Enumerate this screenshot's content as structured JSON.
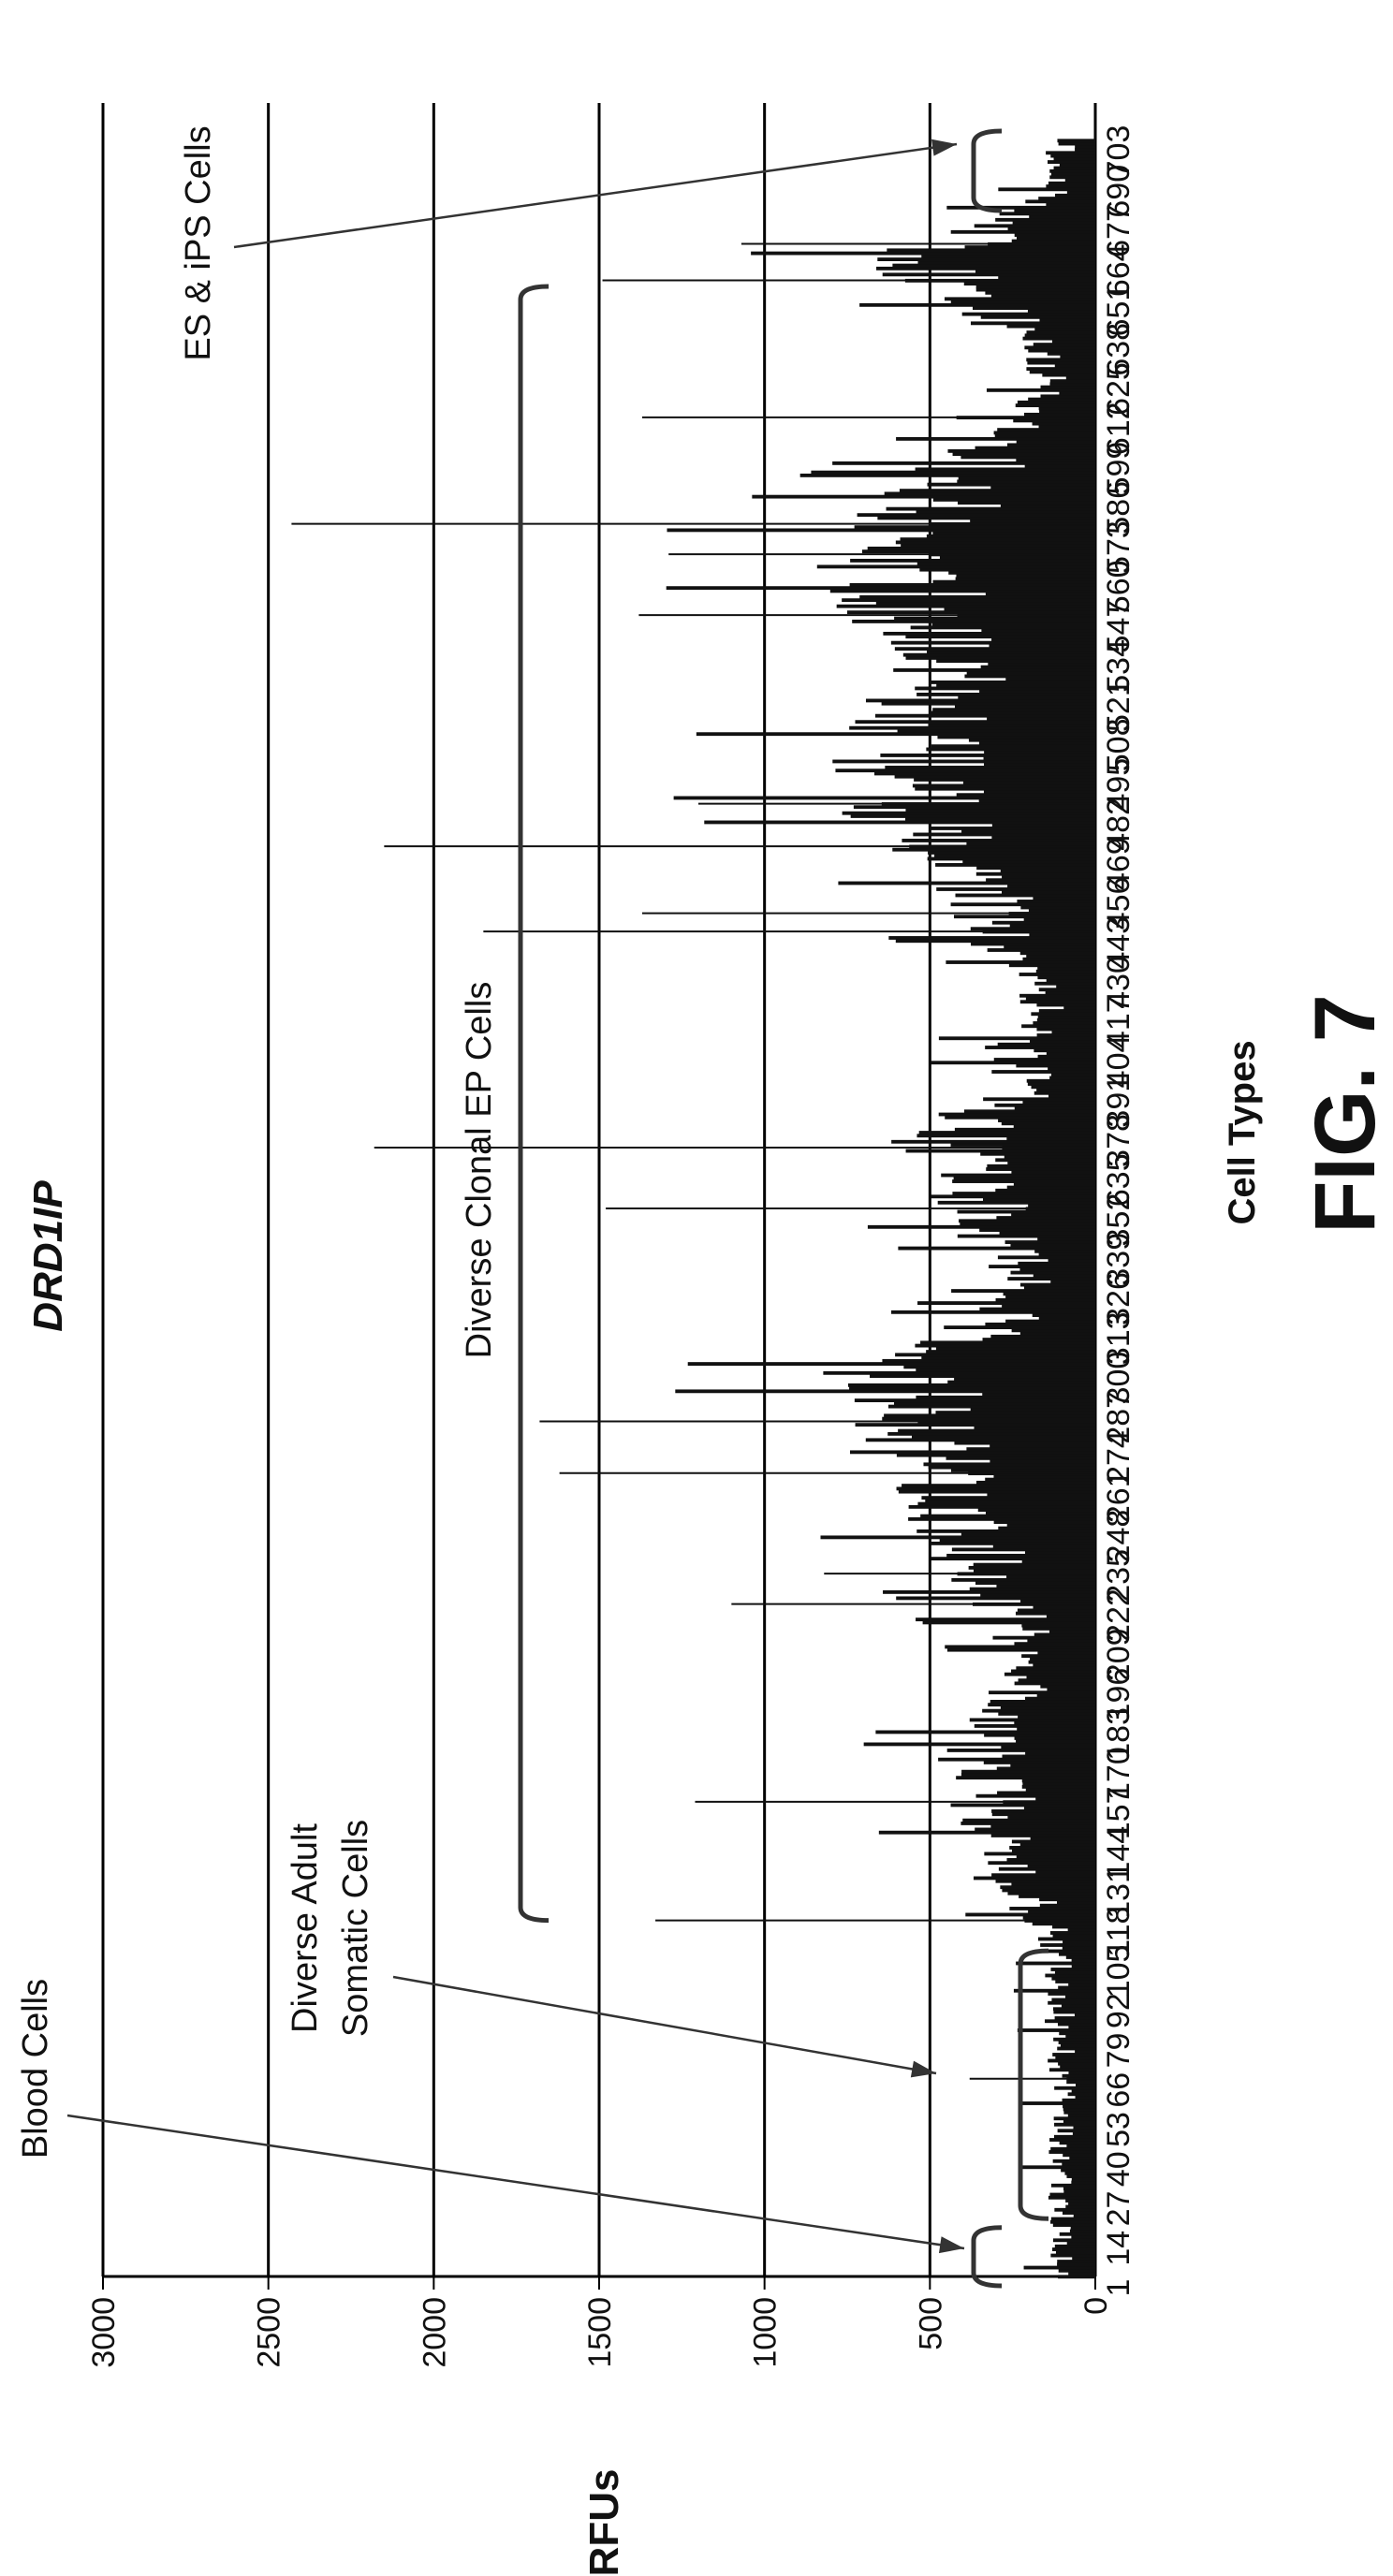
{
  "figure": {
    "title": "DRD1IP",
    "fig_label": "FIG. 7"
  },
  "annotations": {
    "blood": "Blood Cells",
    "somatic_line1": "Diverse Adult",
    "somatic_line2": "Somatic Cells",
    "clonal": "Diverse Clonal EP Cells",
    "es_ips": "ES & iPS Cells"
  },
  "chart_data": {
    "type": "bar",
    "title": "DRD1IP",
    "xlabel": "Cell Types",
    "ylabel": "RFUs",
    "ylim": [
      0,
      3000
    ],
    "yticks": [
      0,
      500,
      1000,
      1500,
      2000,
      2500,
      3000
    ],
    "grid": true,
    "orientation": "rotated",
    "category_labels": [
      "1",
      "14",
      "27",
      "40",
      "53",
      "66",
      "79",
      "92",
      "105",
      "118",
      "131",
      "144",
      "157",
      "170",
      "183",
      "196",
      "209",
      "222",
      "235",
      "248",
      "261",
      "274",
      "287",
      "300",
      "313",
      "326",
      "339",
      "352",
      "635",
      "378",
      "391",
      "404",
      "417",
      "430",
      "443",
      "456",
      "469",
      "482",
      "495",
      "508",
      "521",
      "534",
      "547",
      "560",
      "573",
      "586",
      "599",
      "612",
      "625",
      "638",
      "651",
      "664",
      "677",
      "690",
      "703"
    ],
    "groups": [
      {
        "name": "Blood Cells",
        "from": 1,
        "to": 14
      },
      {
        "name": "Diverse Adult Somatic Cells",
        "from": 20,
        "to": 108
      },
      {
        "name": "Diverse Clonal EP Cells",
        "from": 118,
        "to": 655
      },
      {
        "name": "ES & iPS Cells",
        "from": 683,
        "to": 703
      }
    ],
    "band_envelope": [
      {
        "cell": 1,
        "value": 120
      },
      {
        "cell": 60,
        "value": 130
      },
      {
        "cell": 108,
        "value": 140
      },
      {
        "cell": 118,
        "value": 200
      },
      {
        "cell": 131,
        "value": 320
      },
      {
        "cell": 150,
        "value": 380
      },
      {
        "cell": 170,
        "value": 420
      },
      {
        "cell": 190,
        "value": 330
      },
      {
        "cell": 205,
        "value": 250
      },
      {
        "cell": 222,
        "value": 330
      },
      {
        "cell": 240,
        "value": 460
      },
      {
        "cell": 255,
        "value": 520
      },
      {
        "cell": 270,
        "value": 650
      },
      {
        "cell": 285,
        "value": 700
      },
      {
        "cell": 300,
        "value": 720
      },
      {
        "cell": 313,
        "value": 420
      },
      {
        "cell": 326,
        "value": 230
      },
      {
        "cell": 345,
        "value": 380
      },
      {
        "cell": 360,
        "value": 480
      },
      {
        "cell": 378,
        "value": 560
      },
      {
        "cell": 391,
        "value": 260
      },
      {
        "cell": 404,
        "value": 300
      },
      {
        "cell": 417,
        "value": 200
      },
      {
        "cell": 430,
        "value": 220
      },
      {
        "cell": 443,
        "value": 380
      },
      {
        "cell": 456,
        "value": 420
      },
      {
        "cell": 469,
        "value": 520
      },
      {
        "cell": 482,
        "value": 720
      },
      {
        "cell": 495,
        "value": 760
      },
      {
        "cell": 508,
        "value": 680
      },
      {
        "cell": 521,
        "value": 600
      },
      {
        "cell": 534,
        "value": 540
      },
      {
        "cell": 547,
        "value": 680
      },
      {
        "cell": 560,
        "value": 740
      },
      {
        "cell": 573,
        "value": 780
      },
      {
        "cell": 586,
        "value": 580
      },
      {
        "cell": 599,
        "value": 430
      },
      {
        "cell": 612,
        "value": 240
      },
      {
        "cell": 625,
        "value": 160
      },
      {
        "cell": 638,
        "value": 260
      },
      {
        "cell": 651,
        "value": 440
      },
      {
        "cell": 664,
        "value": 640
      },
      {
        "cell": 677,
        "value": 320
      },
      {
        "cell": 690,
        "value": 120
      },
      {
        "cell": 703,
        "value": 140
      }
    ],
    "spikes": [
      {
        "cell": 66,
        "value": 380
      },
      {
        "cell": 118,
        "value": 1330
      },
      {
        "cell": 157,
        "value": 1210
      },
      {
        "cell": 222,
        "value": 1100
      },
      {
        "cell": 232,
        "value": 820
      },
      {
        "cell": 265,
        "value": 1620
      },
      {
        "cell": 282,
        "value": 1680
      },
      {
        "cell": 352,
        "value": 1480
      },
      {
        "cell": 372,
        "value": 2180
      },
      {
        "cell": 443,
        "value": 1850
      },
      {
        "cell": 449,
        "value": 1370
      },
      {
        "cell": 471,
        "value": 2150
      },
      {
        "cell": 485,
        "value": 1200
      },
      {
        "cell": 547,
        "value": 1380
      },
      {
        "cell": 567,
        "value": 1290
      },
      {
        "cell": 577,
        "value": 2430
      },
      {
        "cell": 612,
        "value": 1370
      },
      {
        "cell": 657,
        "value": 1490
      },
      {
        "cell": 669,
        "value": 1070
      }
    ]
  }
}
